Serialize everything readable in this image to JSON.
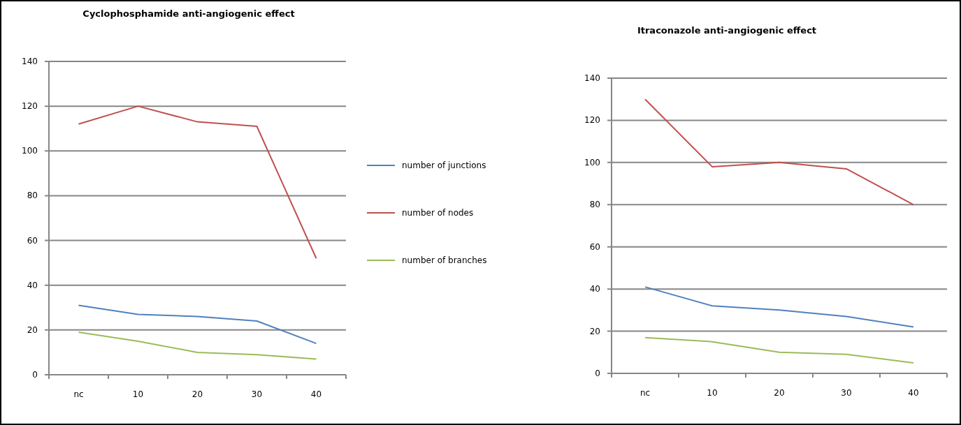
{
  "chart_data": [
    {
      "type": "line",
      "title": "Cyclophosphamide anti-angiogenic effect",
      "categories": [
        "nc",
        "10",
        "20",
        "30",
        "40"
      ],
      "ylim": [
        0,
        140
      ],
      "yticks": [
        0,
        20,
        40,
        60,
        80,
        100,
        120,
        140
      ],
      "grid": "y",
      "legend": "right",
      "marker": "none",
      "series": [
        {
          "name": "number of junctions",
          "color": "#4f81bd",
          "values": [
            31,
            27,
            26,
            24,
            14
          ]
        },
        {
          "name": "number of nodes",
          "color": "#c0504d",
          "values": [
            112,
            120,
            113,
            111,
            52
          ]
        },
        {
          "name": "number of branches",
          "color": "#9bbb59",
          "values": [
            19,
            15,
            10,
            9,
            7
          ]
        }
      ]
    },
    {
      "type": "line",
      "title": "Itraconazole anti-angiogenic  effect",
      "categories": [
        "nc",
        "10",
        "20",
        "30",
        "40"
      ],
      "ylim": [
        0,
        140
      ],
      "yticks": [
        0,
        20,
        40,
        60,
        80,
        100,
        120,
        140
      ],
      "grid": "y",
      "marker": "none",
      "series": [
        {
          "color": "#4f81bd",
          "values": [
            41,
            32,
            30,
            27,
            22
          ]
        },
        {
          "color": "#c0504d",
          "values": [
            130,
            98,
            100,
            97,
            80
          ]
        },
        {
          "color": "#9bbb59",
          "values": [
            17,
            15,
            10,
            9,
            5
          ]
        }
      ]
    }
  ]
}
